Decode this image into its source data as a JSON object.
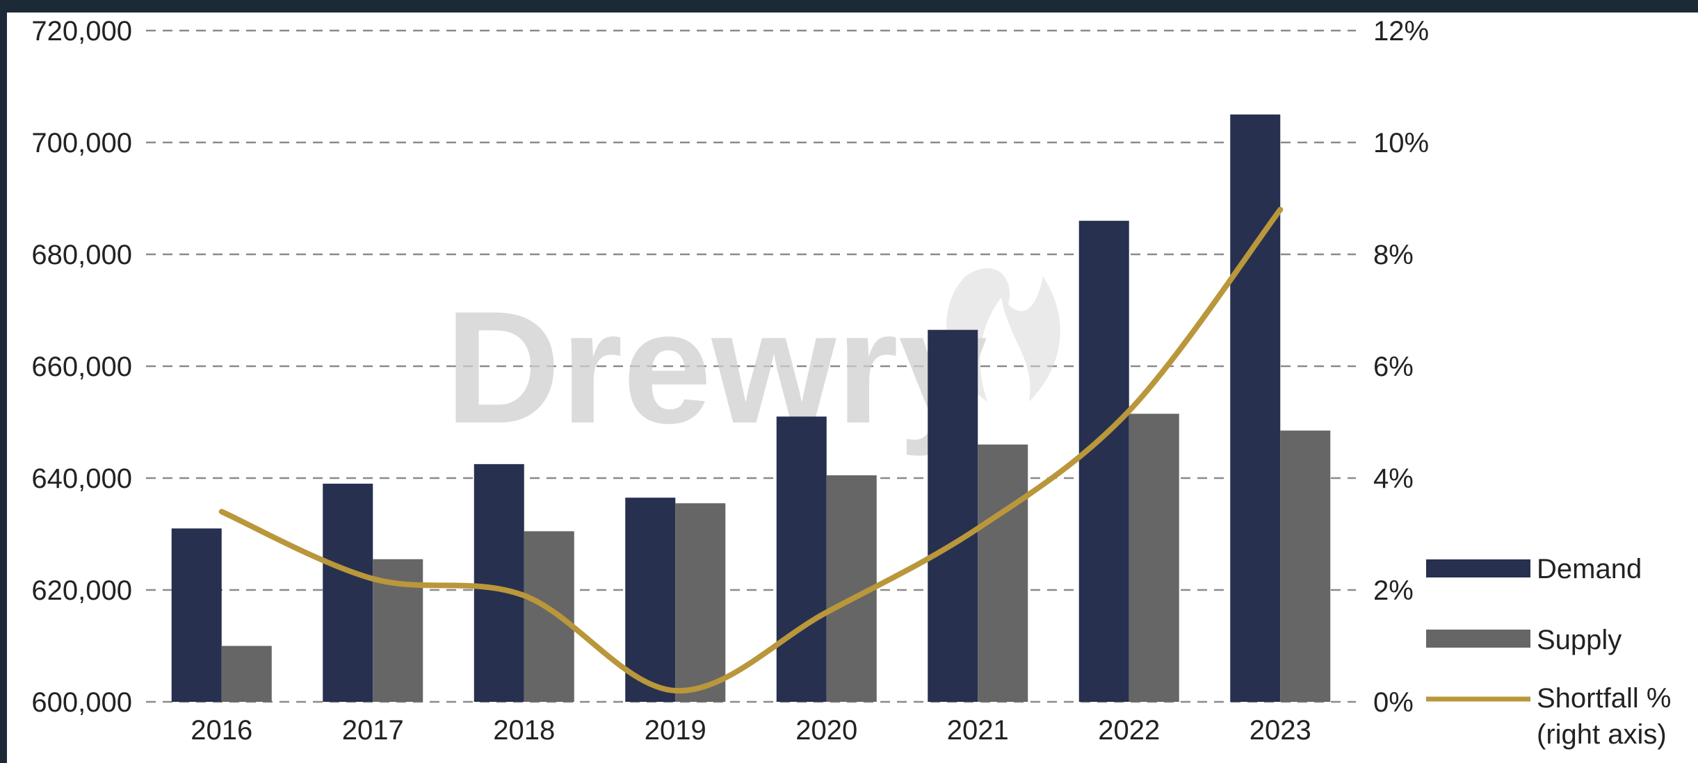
{
  "chart_data": {
    "type": "bar",
    "categories": [
      "2016",
      "2017",
      "2018",
      "2019",
      "2020",
      "2021",
      "2022",
      "2023"
    ],
    "series": [
      {
        "name": "Demand",
        "axis": "left",
        "type": "bar",
        "color": "#27304f",
        "values": [
          631000,
          639000,
          642500,
          636500,
          651000,
          666500,
          686000,
          705000
        ]
      },
      {
        "name": "Supply",
        "axis": "left",
        "type": "bar",
        "color": "#666666",
        "values": [
          610000,
          625500,
          630500,
          635500,
          640500,
          646000,
          651500,
          648500
        ]
      },
      {
        "name": "Shortfall % (right axis)",
        "axis": "right",
        "type": "line",
        "color": "#b9973a",
        "values": [
          3.4,
          2.2,
          1.9,
          0.2,
          1.6,
          3.1,
          5.2,
          8.8
        ]
      }
    ],
    "ylim_left": [
      600000,
      720000
    ],
    "ylim_right": [
      0,
      12
    ],
    "yticks_left": [
      "600,000",
      "620,000",
      "640,000",
      "660,000",
      "680,000",
      "700,000",
      "720,000"
    ],
    "yticks_right": [
      "0%",
      "2%",
      "4%",
      "6%",
      "8%",
      "10%",
      "12%"
    ],
    "grid": true,
    "legend_position": "right",
    "legend": [
      "Demand",
      "Supply",
      "Shortfall %",
      "(right axis)"
    ],
    "watermark": "Drewry"
  }
}
